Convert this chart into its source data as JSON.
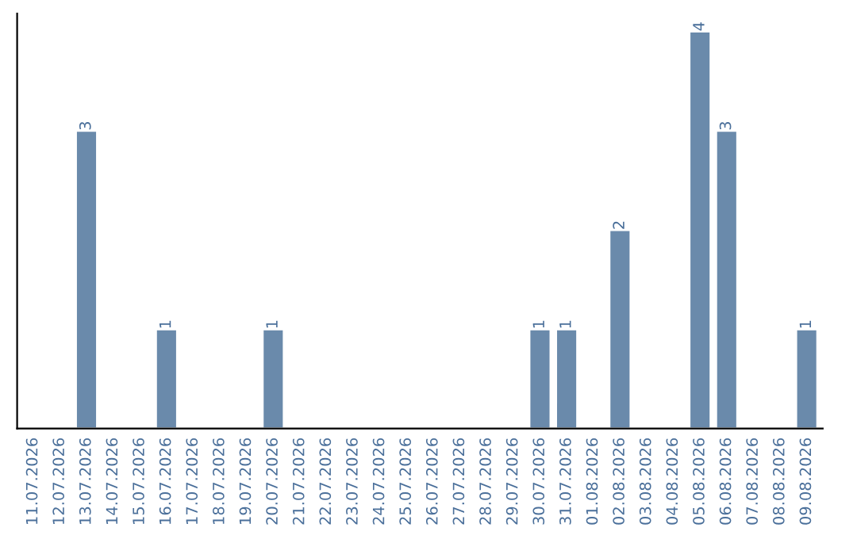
{
  "chart_data": {
    "type": "bar",
    "categories": [
      "11.07.2026",
      "12.07.2026",
      "13.07.2026",
      "14.07.2026",
      "15.07.2026",
      "16.07.2026",
      "17.07.2026",
      "18.07.2026",
      "19.07.2026",
      "20.07.2026",
      "21.07.2026",
      "22.07.2026",
      "23.07.2026",
      "24.07.2026",
      "25.07.2026",
      "26.07.2026",
      "27.07.2026",
      "28.07.2026",
      "29.07.2026",
      "30.07.2026",
      "31.07.2026",
      "01.08.2026",
      "02.08.2026",
      "03.08.2026",
      "04.08.2026",
      "05.08.2026",
      "06.08.2026",
      "07.08.2026",
      "08.08.2026",
      "09.08.2026"
    ],
    "values": [
      null,
      null,
      3,
      null,
      null,
      1,
      null,
      null,
      null,
      1,
      null,
      null,
      null,
      null,
      null,
      null,
      null,
      null,
      null,
      1,
      1,
      null,
      2,
      null,
      null,
      4,
      3,
      null,
      null,
      1
    ],
    "data_labels": true,
    "color": "#6a8aab"
  }
}
